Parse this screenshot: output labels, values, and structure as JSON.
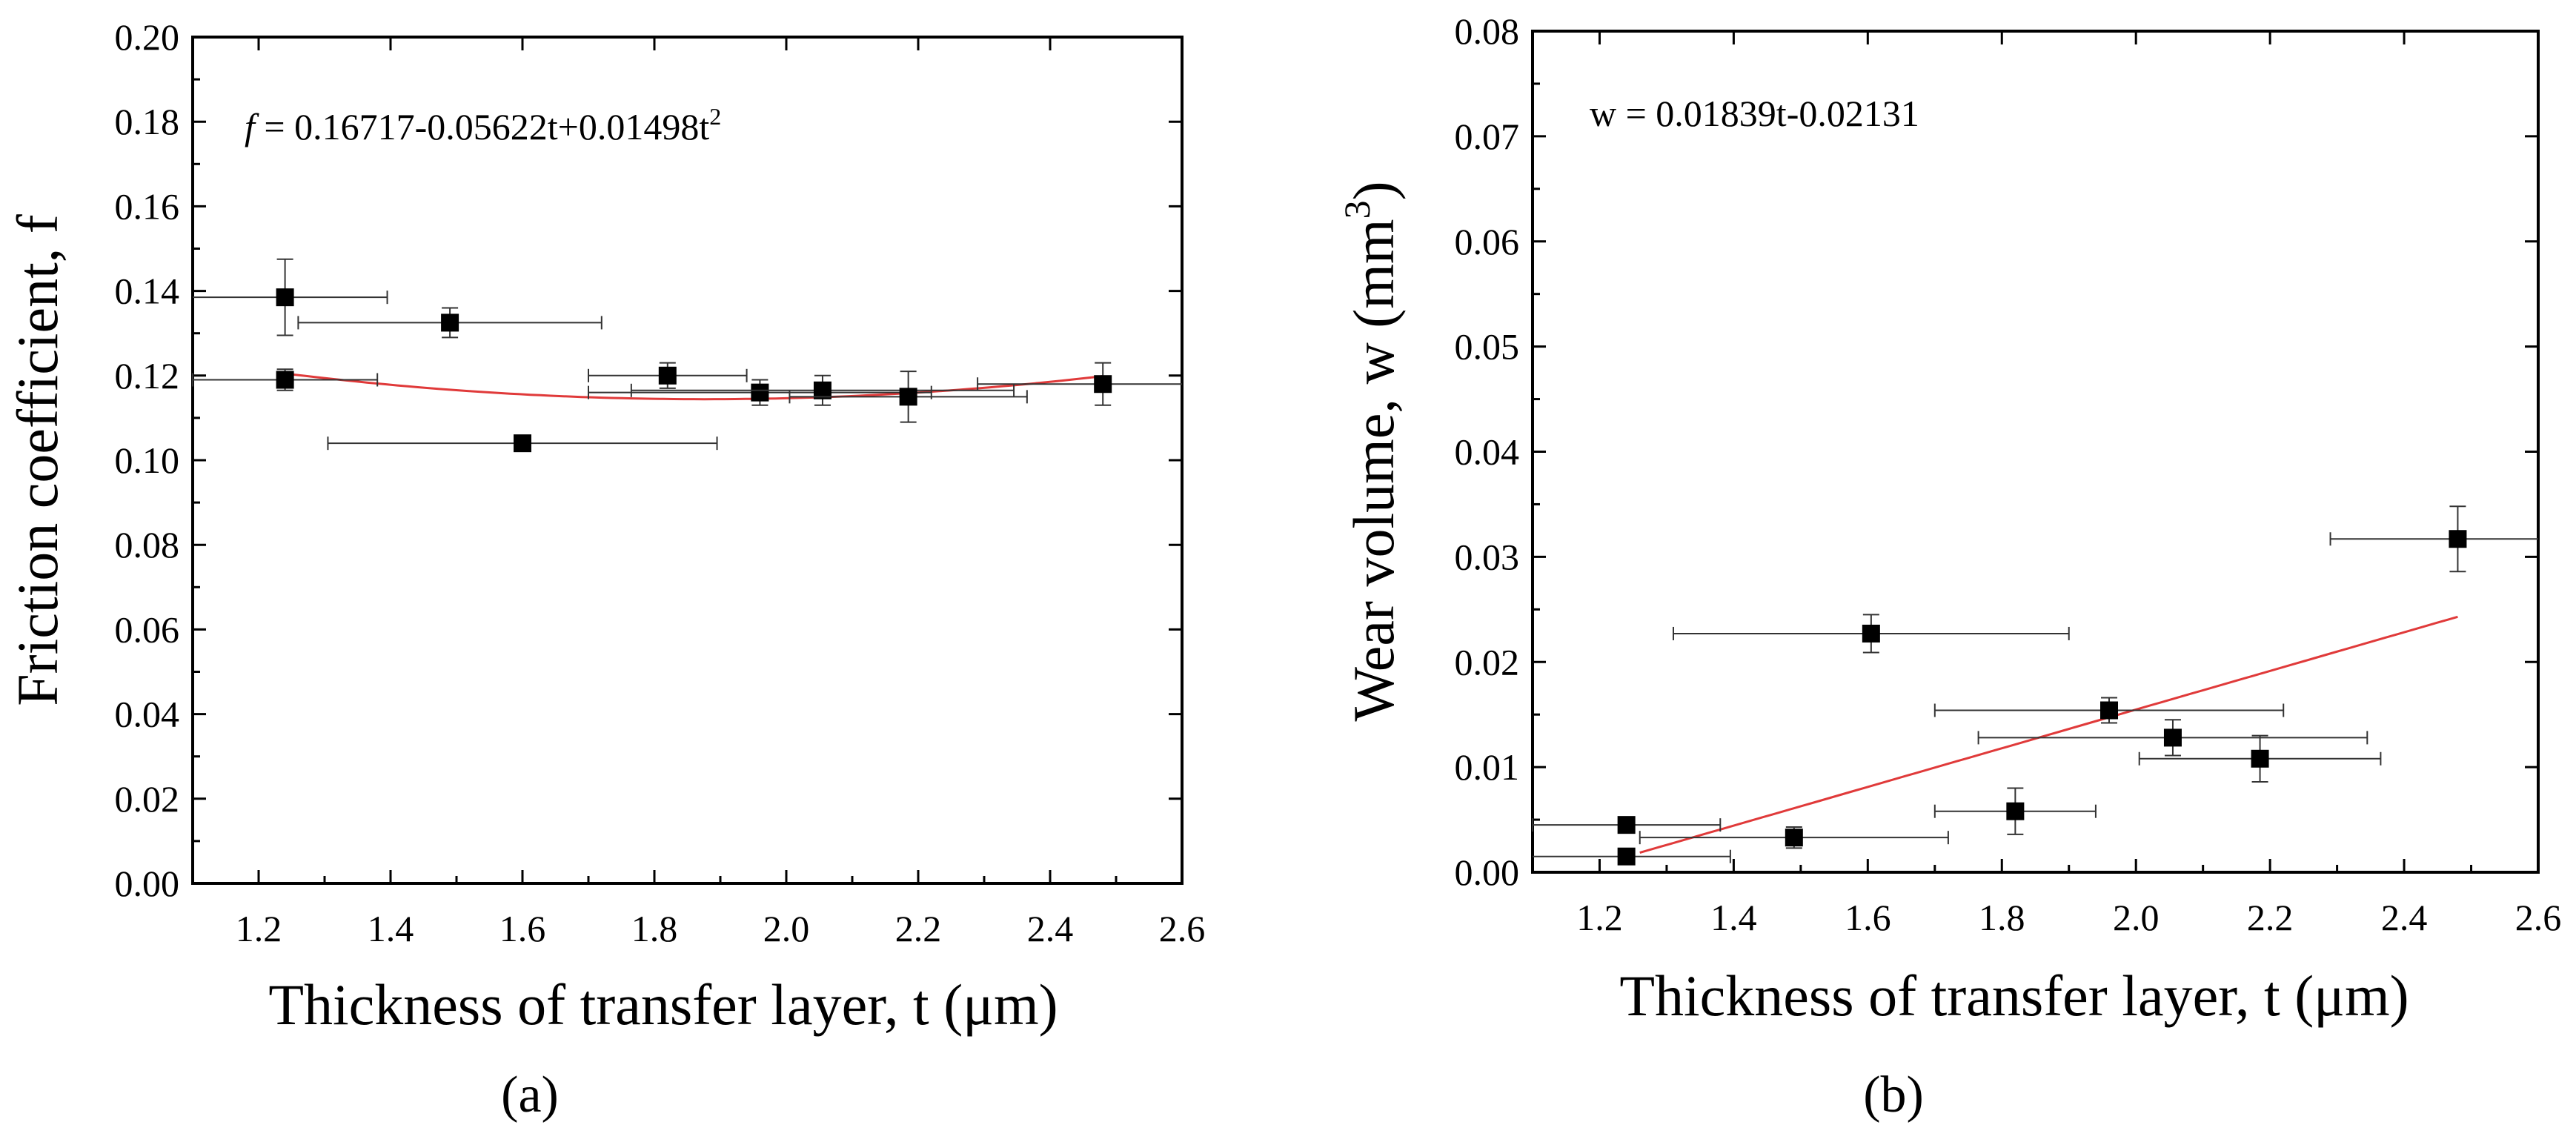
{
  "chart_data": [
    {
      "type": "scatter",
      "panel_label": "(a)",
      "xlabel": "Thickness of transfer layer, t (μm)",
      "ylabel": "Friction coefficient, f",
      "xlim": [
        1.1,
        2.6
      ],
      "ylim": [
        0.0,
        0.2
      ],
      "xticks": [
        1.2,
        1.4,
        1.6,
        1.8,
        2.0,
        2.2,
        2.4,
        2.6
      ],
      "yticks": [
        0.0,
        0.02,
        0.04,
        0.06,
        0.08,
        0.1,
        0.12,
        0.14,
        0.16,
        0.18,
        0.2
      ],
      "xtick_labels": [
        "1.2",
        "1.4",
        "1.6",
        "1.8",
        "2.0",
        "2.2",
        "2.4",
        "2.6"
      ],
      "ytick_labels": [
        "0.00",
        "0.02",
        "0.04",
        "0.06",
        "0.08",
        "0.10",
        "0.12",
        "0.14",
        "0.16",
        "0.18",
        "0.20"
      ],
      "equation": "f = 0.16717-0.05622t+0.01498t²",
      "fit": {
        "type": "quadratic",
        "coeffs": [
          0.16717,
          -0.05622,
          0.01498
        ],
        "x_range": [
          1.24,
          2.48
        ],
        "color": "#e03a3a"
      },
      "points": [
        {
          "x": 1.24,
          "y": 0.1385,
          "xerr": 0.155,
          "yerr": 0.009
        },
        {
          "x": 1.24,
          "y": 0.119,
          "xerr": 0.14,
          "yerr": 0.0025
        },
        {
          "x": 1.49,
          "y": 0.1325,
          "xerr": 0.23,
          "yerr": 0.0035
        },
        {
          "x": 1.6,
          "y": 0.104,
          "xerr": 0.295,
          "yerr": 0.0015
        },
        {
          "x": 1.82,
          "y": 0.12,
          "xerr": 0.12,
          "yerr": 0.003
        },
        {
          "x": 1.96,
          "y": 0.116,
          "xerr": 0.26,
          "yerr": 0.003
        },
        {
          "x": 2.055,
          "y": 0.1165,
          "xerr": 0.29,
          "yerr": 0.0035
        },
        {
          "x": 2.185,
          "y": 0.115,
          "xerr": 0.18,
          "yerr": 0.006
        },
        {
          "x": 2.48,
          "y": 0.118,
          "xerr": 0.19,
          "yerr": 0.005
        }
      ]
    },
    {
      "type": "scatter",
      "panel_label": "(b)",
      "xlabel": "Thickness of transfer layer, t (μm)",
      "ylabel": "Wear volume, w (mm³)",
      "xlim": [
        1.1,
        2.6
      ],
      "ylim": [
        0.0,
        0.08
      ],
      "xticks": [
        1.2,
        1.4,
        1.6,
        1.8,
        2.0,
        2.2,
        2.4,
        2.6
      ],
      "yticks": [
        0.0,
        0.01,
        0.02,
        0.03,
        0.04,
        0.05,
        0.06,
        0.07,
        0.08
      ],
      "xtick_labels": [
        "1.2",
        "1.4",
        "1.6",
        "1.8",
        "2.0",
        "2.2",
        "2.4",
        "2.6"
      ],
      "ytick_labels": [
        "0.00",
        "0.01",
        "0.02",
        "0.03",
        "0.04",
        "0.05",
        "0.06",
        "0.07",
        "0.08"
      ],
      "equation": "w = 0.01839t-0.02131",
      "fit": {
        "type": "linear",
        "coeffs": [
          -0.02131,
          0.01839
        ],
        "x_range": [
          1.26,
          2.48
        ],
        "color": "#e03a3a"
      },
      "points": [
        {
          "x": 1.24,
          "y": 0.0045,
          "xerr": 0.14,
          "yerr": 0.0005
        },
        {
          "x": 1.24,
          "y": 0.0015,
          "xerr": 0.155,
          "yerr": 0.0005
        },
        {
          "x": 1.49,
          "y": 0.0033,
          "xerr": 0.23,
          "yerr": 0.001
        },
        {
          "x": 1.605,
          "y": 0.0227,
          "xerr": 0.295,
          "yerr": 0.0018
        },
        {
          "x": 1.82,
          "y": 0.0058,
          "xerr": 0.12,
          "yerr": 0.0022
        },
        {
          "x": 1.96,
          "y": 0.0154,
          "xerr": 0.26,
          "yerr": 0.0012
        },
        {
          "x": 2.055,
          "y": 0.0128,
          "xerr": 0.29,
          "yerr": 0.0017
        },
        {
          "x": 2.185,
          "y": 0.0108,
          "xerr": 0.18,
          "yerr": 0.0022
        },
        {
          "x": 2.48,
          "y": 0.0317,
          "xerr": 0.19,
          "yerr": 0.0031
        }
      ]
    }
  ]
}
